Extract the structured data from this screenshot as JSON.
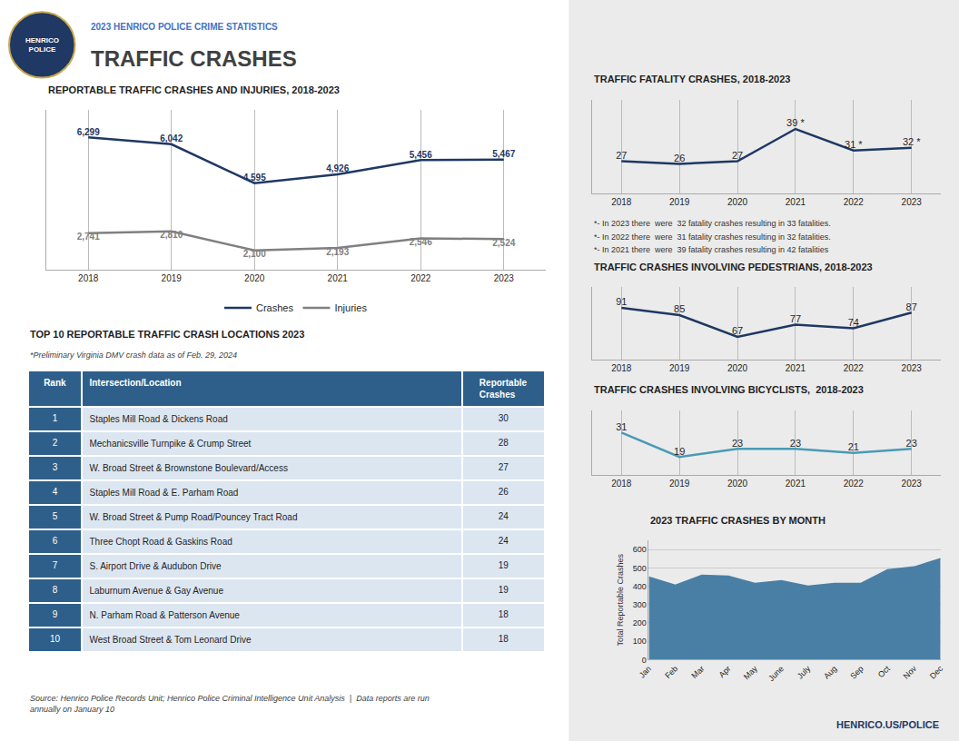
{
  "title": "TRAFFIC CRASHES",
  "subtitle": "2023 HENRICO POLICE CRIME STATISTICS",
  "annotations": [
    "HENRICO\nPOLICE",
    "Source: Henrico Police Records Unit; Henrico Police Criminal Intelligence Unit Analysis  |  Data reports are run\nannually on January 10",
    "HENRICO.US/POLICE"
  ],
  "chart_data": [
    {
      "type": "line",
      "title": "REPORTABLE TRAFFIC CRASHES AND INJURIES, 2018-2023",
      "x": [
        2018,
        2019,
        2020,
        2021,
        2022,
        2023
      ],
      "series": [
        {
          "name": "Crashes",
          "color": "#1f3864",
          "values": [
            6299,
            6042,
            4595,
            4926,
            5456,
            5467
          ],
          "value_labels": [
            "6,299",
            "6,042",
            "4,595",
            "4,926",
            "5,456",
            "5,467"
          ]
        },
        {
          "name": "Injuries",
          "color": "#808080",
          "values": [
            2741,
            2810,
            2100,
            2193,
            2546,
            2524
          ],
          "value_labels": [
            "2,741",
            "2,810",
            "2,100",
            "2,193",
            "2,546",
            "2,524"
          ]
        }
      ],
      "xlim": [
        2017.5,
        2023.5
      ],
      "xticks": [
        2018,
        2019,
        2020,
        2021,
        2022,
        2023
      ],
      "ylim": [
        1400,
        7300
      ],
      "tick_labels": "x",
      "grid": "x",
      "legend": "bottom",
      "data_labels": true
    },
    {
      "type": "line",
      "title": "TRAFFIC FATALITY CRASHES, 2018-2023",
      "x": [
        2018,
        2019,
        2020,
        2021,
        2022,
        2023
      ],
      "values": [
        27,
        26,
        27,
        39,
        31,
        32
      ],
      "value_labels": [
        "27",
        "26",
        "27",
        "39 *",
        "31 *",
        "32 *"
      ],
      "color": "#1f3864",
      "xlim": [
        2017.5,
        2023.5
      ],
      "xticks": [
        2018,
        2019,
        2020,
        2021,
        2022,
        2023
      ],
      "ylim": [
        15,
        50
      ],
      "tick_labels": "x",
      "grid": "x",
      "data_labels": true,
      "annotations": [
        "*- In 2023 there  were  32 fatality crashes resulting in 33 fatalities.",
        "*- In 2022 there  were  31 fatality crashes resulting in 32 fatalities.",
        "*- In 2021 there  were  39 fatality crashes resulting in 42 fatalities"
      ]
    },
    {
      "type": "line",
      "title": "TRAFFIC CRASHES INVOLVING PEDESTRIANS, 2018-2023",
      "x": [
        2018,
        2019,
        2020,
        2021,
        2022,
        2023
      ],
      "values": [
        91,
        85,
        67,
        77,
        74,
        87
      ],
      "color": "#1f3864",
      "xlim": [
        2017.5,
        2023.5
      ],
      "xticks": [
        2018,
        2019,
        2020,
        2021,
        2022,
        2023
      ],
      "ylim": [
        48,
        108
      ],
      "tick_labels": "x",
      "grid": "x",
      "data_labels": true
    },
    {
      "type": "line",
      "title": "TRAFFIC CRASHES INVOLVING BICYCLISTS,  2018-2023",
      "x": [
        2018,
        2019,
        2020,
        2021,
        2022,
        2023
      ],
      "values": [
        31,
        19,
        23,
        23,
        21,
        23
      ],
      "color": "#4a9ab5",
      "xlim": [
        2017.5,
        2023.5
      ],
      "xticks": [
        2018,
        2019,
        2020,
        2021,
        2022,
        2023
      ],
      "ylim": [
        10,
        42
      ],
      "tick_labels": "x",
      "grid": "x",
      "data_labels": true
    },
    {
      "type": "area",
      "title": "2023 TRAFFIC CRASHES BY MONTH",
      "categories": [
        "Jan",
        "Feb",
        "Mar",
        "Apr",
        "May",
        "June",
        "July",
        "Aug",
        "Sep",
        "Oct",
        "Nov",
        "Dec"
      ],
      "values": [
        450,
        405,
        460,
        455,
        415,
        430,
        400,
        415,
        415,
        490,
        505,
        550
      ],
      "color": "#4a7fa5",
      "y_label": "Total Reportable Crashes",
      "ylim": [
        0,
        650
      ],
      "yticks": [
        0,
        100,
        200,
        300,
        400,
        500,
        600
      ],
      "grid": "y"
    },
    {
      "type": "table",
      "title": "TOP 10 REPORTABLE TRAFFIC CRASH LOCATIONS 2023",
      "subtitle": "*Preliminary Virginia DMV crash data as of Feb. 29, 2024",
      "columns": [
        "Rank",
        "Intersection/Location",
        "Reportable Crashes"
      ],
      "rows": [
        [
          1,
          "Staples Mill Road & Dickens Road",
          30
        ],
        [
          2,
          "Mechanicsville Turnpike & Crump Street",
          28
        ],
        [
          3,
          "W. Broad Street & Brownstone Boulevard/Access",
          27
        ],
        [
          4,
          "Staples Mill Road & E. Parham Road",
          26
        ],
        [
          5,
          "W. Broad Street & Pump Road/Pouncey Tract Road",
          24
        ],
        [
          6,
          "Three Chopt Road & Gaskins Road",
          24
        ],
        [
          7,
          "S. Airport Drive & Audubon Drive",
          19
        ],
        [
          8,
          "Laburnum Avenue & Gay Avenue",
          19
        ],
        [
          9,
          "N. Parham Road & Patterson Avenue",
          18
        ],
        [
          10,
          "West Broad Street & Tom Leonard Drive",
          18
        ]
      ],
      "color": "#2e5f8a",
      "colors": [
        "#2e5f8a",
        "#dce6f1",
        "#dce6f1"
      ]
    }
  ]
}
